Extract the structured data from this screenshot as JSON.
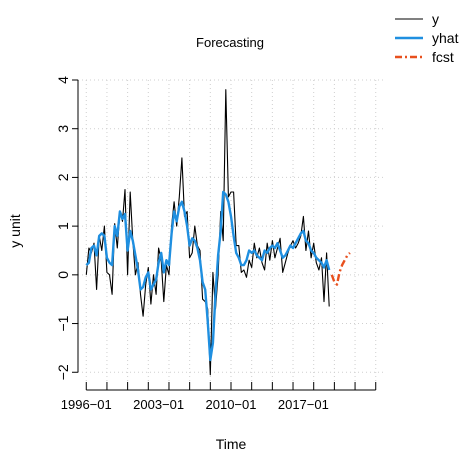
{
  "chart_data": {
    "type": "line",
    "title": "Forecasting",
    "xlabel": "Time",
    "ylabel": "y unit",
    "xlim": [
      1995.2,
      2024.8
    ],
    "ylim": [
      -2.2,
      4.0
    ],
    "x_tick_values": [
      1996,
      1998,
      2000,
      2002,
      2004,
      2006,
      2008,
      2010,
      2012,
      2014,
      2016,
      2018,
      2020,
      2022,
      2024
    ],
    "x_tick_labels": [
      {
        "x": 1996,
        "label": "1996−01"
      },
      {
        "x": 2003,
        "label": "2003−01"
      },
      {
        "x": 2010,
        "label": "2010−01"
      },
      {
        "x": 2017,
        "label": "2017−01"
      }
    ],
    "y_ticks": [
      {
        "value": -2,
        "label": "−2"
      },
      {
        "value": -1,
        "label": "−1"
      },
      {
        "value": 0,
        "label": "0"
      },
      {
        "value": 1,
        "label": "1"
      },
      {
        "value": 2,
        "label": "2"
      },
      {
        "value": 3,
        "label": "3"
      },
      {
        "value": 4,
        "label": "4"
      }
    ],
    "grid": true,
    "legend_position": "top-right",
    "series": [
      {
        "name": "y",
        "color": "#000000",
        "style": "solid",
        "points": [
          [
            1996.0,
            0.0
          ],
          [
            1996.25,
            0.55
          ],
          [
            1996.5,
            0.45
          ],
          [
            1996.75,
            0.65
          ],
          [
            1997.0,
            -0.3
          ],
          [
            1997.25,
            0.8
          ],
          [
            1997.5,
            0.5
          ],
          [
            1997.75,
            1.0
          ],
          [
            1998.0,
            0.05
          ],
          [
            1998.25,
            0.0
          ],
          [
            1998.5,
            -0.4
          ],
          [
            1998.75,
            1.05
          ],
          [
            1999.0,
            0.55
          ],
          [
            1999.25,
            1.3
          ],
          [
            1999.5,
            1.1
          ],
          [
            1999.75,
            1.75
          ],
          [
            2000.0,
            0.0
          ],
          [
            2000.25,
            1.7
          ],
          [
            2000.5,
            0.7
          ],
          [
            2000.75,
            0.0
          ],
          [
            2001.0,
            0.25
          ],
          [
            2001.25,
            -0.4
          ],
          [
            2001.5,
            -0.85
          ],
          [
            2001.75,
            -0.2
          ],
          [
            2002.0,
            0.15
          ],
          [
            2002.25,
            -0.6
          ],
          [
            2002.5,
            0.0
          ],
          [
            2002.75,
            -0.4
          ],
          [
            2003.0,
            0.55
          ],
          [
            2003.25,
            0.3
          ],
          [
            2003.5,
            -0.55
          ],
          [
            2003.75,
            0.2
          ],
          [
            2004.0,
            0.0
          ],
          [
            2004.25,
            1.0
          ],
          [
            2004.5,
            1.5
          ],
          [
            2004.75,
            1.0
          ],
          [
            2005.0,
            1.6
          ],
          [
            2005.25,
            2.4
          ],
          [
            2005.5,
            1.2
          ],
          [
            2005.75,
            1.3
          ],
          [
            2006.0,
            0.35
          ],
          [
            2006.25,
            0.45
          ],
          [
            2006.5,
            1.0
          ],
          [
            2006.75,
            0.6
          ],
          [
            2007.0,
            0.5
          ],
          [
            2007.25,
            -0.5
          ],
          [
            2007.5,
            -0.55
          ],
          [
            2007.75,
            -0.7
          ],
          [
            2008.0,
            -2.05
          ],
          [
            2008.25,
            0.05
          ],
          [
            2008.5,
            -0.7
          ],
          [
            2008.75,
            0.0
          ],
          [
            2009.0,
            1.3
          ],
          [
            2009.25,
            0.7
          ],
          [
            2009.5,
            3.8
          ],
          [
            2009.75,
            1.6
          ],
          [
            2010.0,
            1.7
          ],
          [
            2010.25,
            1.7
          ],
          [
            2010.5,
            0.6
          ],
          [
            2010.75,
            0.6
          ],
          [
            2011.0,
            0.05
          ],
          [
            2011.25,
            0.1
          ],
          [
            2011.5,
            -0.05
          ],
          [
            2011.75,
            0.3
          ],
          [
            2012.0,
            0.15
          ],
          [
            2012.25,
            0.65
          ],
          [
            2012.5,
            0.35
          ],
          [
            2012.75,
            0.55
          ],
          [
            2013.0,
            0.25
          ],
          [
            2013.25,
            0.1
          ],
          [
            2013.5,
            0.65
          ],
          [
            2013.75,
            0.3
          ],
          [
            2014.0,
            0.7
          ],
          [
            2014.25,
            0.35
          ],
          [
            2014.5,
            0.55
          ],
          [
            2014.75,
            0.75
          ],
          [
            2015.0,
            0.05
          ],
          [
            2015.25,
            0.25
          ],
          [
            2015.5,
            0.45
          ],
          [
            2015.75,
            0.6
          ],
          [
            2016.0,
            0.7
          ],
          [
            2016.25,
            0.55
          ],
          [
            2016.5,
            0.65
          ],
          [
            2016.75,
            0.8
          ],
          [
            2017.0,
            1.2
          ],
          [
            2017.25,
            0.5
          ],
          [
            2017.5,
            0.9
          ],
          [
            2017.75,
            0.35
          ],
          [
            2018.0,
            0.65
          ],
          [
            2018.25,
            0.25
          ],
          [
            2018.5,
            0.1
          ],
          [
            2018.75,
            0.35
          ],
          [
            2019.0,
            -0.55
          ],
          [
            2019.25,
            0.45
          ],
          [
            2019.5,
            -0.65
          ]
        ]
      },
      {
        "name": "yhat",
        "color": "#1f8fe0",
        "style": "solid",
        "points": [
          [
            1996.0,
            0.2
          ],
          [
            1996.25,
            0.25
          ],
          [
            1996.5,
            0.55
          ],
          [
            1996.75,
            0.6
          ],
          [
            1997.0,
            0.4
          ],
          [
            1997.25,
            0.8
          ],
          [
            1997.5,
            0.85
          ],
          [
            1997.75,
            0.8
          ],
          [
            1998.0,
            0.35
          ],
          [
            1998.25,
            0.25
          ],
          [
            1998.5,
            0.2
          ],
          [
            1998.75,
            1.0
          ],
          [
            1999.0,
            0.8
          ],
          [
            1999.25,
            1.3
          ],
          [
            1999.5,
            1.15
          ],
          [
            1999.75,
            1.25
          ],
          [
            2000.0,
            0.5
          ],
          [
            2000.25,
            0.9
          ],
          [
            2000.5,
            0.7
          ],
          [
            2000.75,
            0.4
          ],
          [
            2001.0,
            0.1
          ],
          [
            2001.25,
            -0.3
          ],
          [
            2001.5,
            -0.25
          ],
          [
            2001.75,
            -0.05
          ],
          [
            2002.0,
            0.05
          ],
          [
            2002.25,
            -0.3
          ],
          [
            2002.5,
            -0.2
          ],
          [
            2002.75,
            -0.1
          ],
          [
            2003.0,
            0.25
          ],
          [
            2003.25,
            0.45
          ],
          [
            2003.5,
            0.05
          ],
          [
            2003.75,
            0.3
          ],
          [
            2004.0,
            0.2
          ],
          [
            2004.25,
            0.85
          ],
          [
            2004.5,
            1.3
          ],
          [
            2004.75,
            1.1
          ],
          [
            2005.0,
            1.4
          ],
          [
            2005.25,
            1.5
          ],
          [
            2005.5,
            1.3
          ],
          [
            2005.75,
            1.0
          ],
          [
            2006.0,
            0.6
          ],
          [
            2006.25,
            0.75
          ],
          [
            2006.5,
            0.7
          ],
          [
            2006.75,
            0.55
          ],
          [
            2007.0,
            0.3
          ],
          [
            2007.25,
            -0.15
          ],
          [
            2007.5,
            -0.3
          ],
          [
            2007.75,
            -0.95
          ],
          [
            2008.0,
            -1.75
          ],
          [
            2008.25,
            -1.4
          ],
          [
            2008.5,
            -0.4
          ],
          [
            2008.75,
            0.4
          ],
          [
            2009.0,
            0.9
          ],
          [
            2009.25,
            1.7
          ],
          [
            2009.5,
            1.65
          ],
          [
            2009.75,
            1.5
          ],
          [
            2010.0,
            1.2
          ],
          [
            2010.25,
            0.8
          ],
          [
            2010.5,
            0.45
          ],
          [
            2010.75,
            0.35
          ],
          [
            2011.0,
            0.2
          ],
          [
            2011.25,
            0.2
          ],
          [
            2011.5,
            0.3
          ],
          [
            2011.75,
            0.5
          ],
          [
            2012.0,
            0.45
          ],
          [
            2012.25,
            0.5
          ],
          [
            2012.5,
            0.4
          ],
          [
            2012.75,
            0.35
          ],
          [
            2013.0,
            0.3
          ],
          [
            2013.25,
            0.5
          ],
          [
            2013.5,
            0.45
          ],
          [
            2013.75,
            0.55
          ],
          [
            2014.0,
            0.6
          ],
          [
            2014.25,
            0.55
          ],
          [
            2014.5,
            0.65
          ],
          [
            2014.75,
            0.5
          ],
          [
            2015.0,
            0.35
          ],
          [
            2015.25,
            0.4
          ],
          [
            2015.5,
            0.5
          ],
          [
            2015.75,
            0.6
          ],
          [
            2016.0,
            0.55
          ],
          [
            2016.25,
            0.65
          ],
          [
            2016.5,
            0.75
          ],
          [
            2016.75,
            0.85
          ],
          [
            2017.0,
            0.9
          ],
          [
            2017.25,
            0.7
          ],
          [
            2017.5,
            0.65
          ],
          [
            2017.75,
            0.5
          ],
          [
            2018.0,
            0.45
          ],
          [
            2018.25,
            0.35
          ],
          [
            2018.5,
            0.3
          ],
          [
            2018.75,
            0.25
          ],
          [
            2019.0,
            0.15
          ],
          [
            2019.25,
            0.3
          ],
          [
            2019.5,
            0.1
          ]
        ]
      },
      {
        "name": "fcst",
        "color": "#e8501e",
        "style": "dashdot",
        "points": [
          [
            2019.75,
            0.0
          ],
          [
            2020.0,
            -0.15
          ],
          [
            2020.25,
            -0.2
          ],
          [
            2020.5,
            0.05
          ],
          [
            2020.75,
            0.2
          ],
          [
            2021.0,
            0.3
          ],
          [
            2021.25,
            0.4
          ],
          [
            2021.5,
            0.45
          ]
        ]
      }
    ]
  }
}
